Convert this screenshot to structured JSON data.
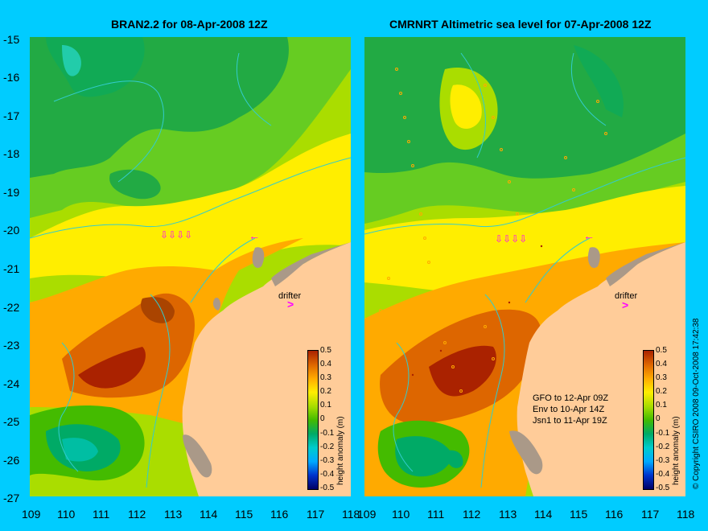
{
  "left_panel": {
    "title": "BRAN2.2 for 08-Apr-2008 12Z",
    "drifter_label": "drifter",
    "colorbar_unit": "height anomaly (m)"
  },
  "right_panel": {
    "title": "CMRNRT Altimetric sea level  for 07-Apr-2008 12Z",
    "drifter_label": "drifter",
    "colorbar_unit": "height anomaly (m)",
    "legend": [
      "GFO to 12-Apr 09Z",
      "Env to 10-Apr 14Z",
      "Jsn1 to 11-Apr 19Z"
    ]
  },
  "y_axis": [
    "-15",
    "-16",
    "-17",
    "-18",
    "-19",
    "-20",
    "-21",
    "-22",
    "-23",
    "-24",
    "-25",
    "-26",
    "-27"
  ],
  "x_axis_left": [
    "109",
    "110",
    "111",
    "112",
    "113",
    "114",
    "115",
    "116",
    "117",
    "118"
  ],
  "x_axis_right": [
    "109",
    "110",
    "111",
    "112",
    "113",
    "114",
    "115",
    "116",
    "117",
    "118"
  ],
  "colorbar_ticks": [
    "0.5",
    "0.4",
    "0.3",
    "0.2",
    "0.1",
    "0",
    "-0.1",
    "-0.2",
    "-0.3",
    "-0.4",
    "-0.5"
  ],
  "side_text": "© Copyright CSIRO 2008    09-Oct-2008 17:42:38",
  "colors": {
    "background": "#00ccff",
    "land": "#ffcc99",
    "coast_gray": "#aa9988",
    "drifter": "#ff00ff",
    "contour": "#33cccc"
  }
}
